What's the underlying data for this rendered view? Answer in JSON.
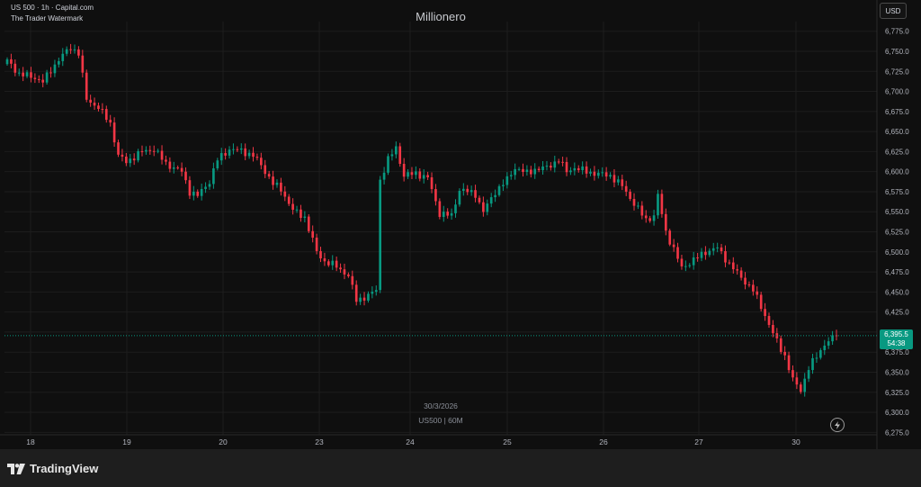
{
  "header": {
    "symbol_line": "US 500 · 1h · Capital.com",
    "watermark_line": "The Trader Watermark"
  },
  "title": "Millionero",
  "currency_button": "USD",
  "center_watermark": {
    "date": "30/3/2026",
    "ticker": "US500 | 60M"
  },
  "price_tag": {
    "price": "6,395.5",
    "countdown": "54:38"
  },
  "footer": {
    "brand": "TradingView"
  },
  "colors": {
    "up": "#089981",
    "down": "#f23645",
    "background": "#0f0f0f",
    "grid": "#1d1d1d"
  },
  "icons": [
    "tradingview-logo-icon",
    "lightning-icon"
  ],
  "chart_data": {
    "type": "candlestick",
    "x_ticks": [
      "18",
      "19",
      "20",
      "23",
      "24",
      "25",
      "26",
      "27",
      "30"
    ],
    "y_ticks": [
      "6,275.0",
      "6,300.0",
      "6,325.0",
      "6,350.0",
      "6,375.0",
      "6,400.0",
      "6,425.0",
      "6,450.0",
      "6,475.0",
      "6,500.0",
      "6,525.0",
      "6,550.0",
      "6,575.0",
      "6,600.0",
      "6,625.0",
      "6,650.0",
      "6,675.0",
      "6,700.0",
      "6,725.0",
      "6,750.0",
      "6,775.0"
    ],
    "ylim": [
      6272,
      6787
    ],
    "last_price": 6395.5,
    "close_path": [
      [
        0,
        6738
      ],
      [
        3,
        6722
      ],
      [
        7,
        6717
      ],
      [
        9,
        6712
      ],
      [
        13,
        6740
      ],
      [
        16,
        6755
      ],
      [
        18,
        6748
      ],
      [
        20,
        6690
      ],
      [
        23,
        6680
      ],
      [
        26,
        6660
      ],
      [
        28,
        6620
      ],
      [
        30,
        6612
      ],
      [
        34,
        6625
      ],
      [
        37,
        6628
      ],
      [
        40,
        6610
      ],
      [
        44,
        6600
      ],
      [
        46,
        6575
      ],
      [
        48,
        6570
      ],
      [
        51,
        6588
      ],
      [
        53,
        6615
      ],
      [
        56,
        6628
      ],
      [
        59,
        6626
      ],
      [
        62,
        6620
      ],
      [
        64,
        6608
      ],
      [
        67,
        6585
      ],
      [
        69,
        6578
      ],
      [
        72,
        6552
      ],
      [
        75,
        6543
      ],
      [
        78,
        6500
      ],
      [
        80,
        6488
      ],
      [
        83,
        6482
      ],
      [
        86,
        6470
      ],
      [
        88,
        6440
      ],
      [
        91,
        6445
      ],
      [
        93,
        6453
      ],
      [
        94,
        6590
      ],
      [
        96,
        6615
      ],
      [
        98,
        6630
      ],
      [
        100,
        6595
      ],
      [
        103,
        6598
      ],
      [
        106,
        6592
      ],
      [
        109,
        6548
      ],
      [
        112,
        6545
      ],
      [
        114,
        6578
      ],
      [
        118,
        6572
      ],
      [
        120,
        6550
      ],
      [
        123,
        6575
      ],
      [
        126,
        6590
      ],
      [
        128,
        6605
      ],
      [
        131,
        6598
      ],
      [
        133,
        6603
      ],
      [
        136,
        6605
      ],
      [
        139,
        6615
      ],
      [
        141,
        6600
      ],
      [
        143,
        6605
      ],
      [
        146,
        6600
      ],
      [
        148,
        6598
      ],
      [
        152,
        6595
      ],
      [
        155,
        6582
      ],
      [
        158,
        6560
      ],
      [
        161,
        6540
      ],
      [
        163,
        6545
      ],
      [
        164,
        6570
      ],
      [
        166,
        6525
      ],
      [
        168,
        6503
      ],
      [
        170,
        6480
      ],
      [
        173,
        6490
      ],
      [
        176,
        6500
      ],
      [
        179,
        6505
      ],
      [
        182,
        6485
      ],
      [
        185,
        6468
      ],
      [
        188,
        6452
      ],
      [
        190,
        6432
      ],
      [
        193,
        6398
      ],
      [
        196,
        6370
      ],
      [
        198,
        6340
      ],
      [
        200,
        6328
      ],
      [
        202,
        6355
      ],
      [
        204,
        6370
      ],
      [
        206,
        6385
      ],
      [
        209,
        6395.5
      ]
    ]
  }
}
